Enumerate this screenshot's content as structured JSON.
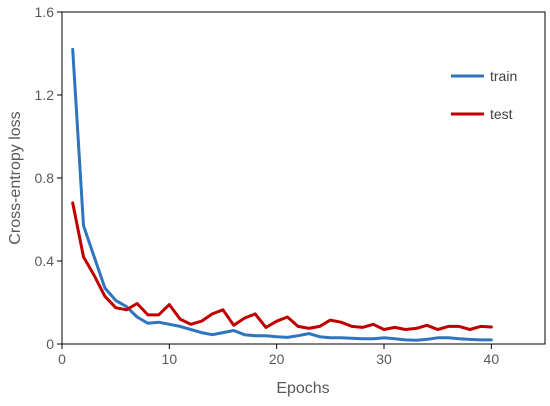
{
  "chart_data": {
    "type": "line",
    "title": "",
    "xlabel": "Epochs",
    "ylabel": "Cross-entropy loss",
    "xlim": [
      0,
      45
    ],
    "ylim": [
      0,
      1.6
    ],
    "xticks": [
      0,
      10,
      20,
      30,
      40
    ],
    "yticks": [
      0,
      0.4,
      0.8,
      1.2,
      1.6
    ],
    "ytick_labels": [
      "0",
      "0.4",
      "0.8",
      "1.2",
      "1.6"
    ],
    "grid": false,
    "legend_position": "top-right",
    "x": [
      1,
      2,
      3,
      4,
      5,
      6,
      7,
      8,
      9,
      10,
      11,
      12,
      13,
      14,
      15,
      16,
      17,
      18,
      19,
      20,
      21,
      22,
      23,
      24,
      25,
      26,
      27,
      28,
      29,
      30,
      31,
      32,
      33,
      34,
      35,
      36,
      37,
      38,
      39,
      40
    ],
    "series": [
      {
        "name": "train",
        "color": "#2E75C0",
        "values": [
          1.42,
          0.57,
          0.42,
          0.27,
          0.21,
          0.18,
          0.13,
          0.1,
          0.105,
          0.095,
          0.085,
          0.07,
          0.055,
          0.045,
          0.055,
          0.065,
          0.045,
          0.04,
          0.04,
          0.035,
          0.032,
          0.04,
          0.05,
          0.035,
          0.03,
          0.03,
          0.028,
          0.025,
          0.025,
          0.03,
          0.025,
          0.02,
          0.018,
          0.022,
          0.03,
          0.03,
          0.025,
          0.022,
          0.02,
          0.02
        ]
      },
      {
        "name": "test",
        "color": "#C00000",
        "values": [
          0.68,
          0.42,
          0.33,
          0.23,
          0.175,
          0.165,
          0.195,
          0.14,
          0.14,
          0.19,
          0.12,
          0.095,
          0.11,
          0.145,
          0.165,
          0.09,
          0.125,
          0.145,
          0.08,
          0.11,
          0.13,
          0.085,
          0.075,
          0.085,
          0.115,
          0.105,
          0.085,
          0.08,
          0.095,
          0.07,
          0.08,
          0.07,
          0.075,
          0.09,
          0.07,
          0.085,
          0.085,
          0.07,
          0.085,
          0.082
        ]
      }
    ]
  }
}
